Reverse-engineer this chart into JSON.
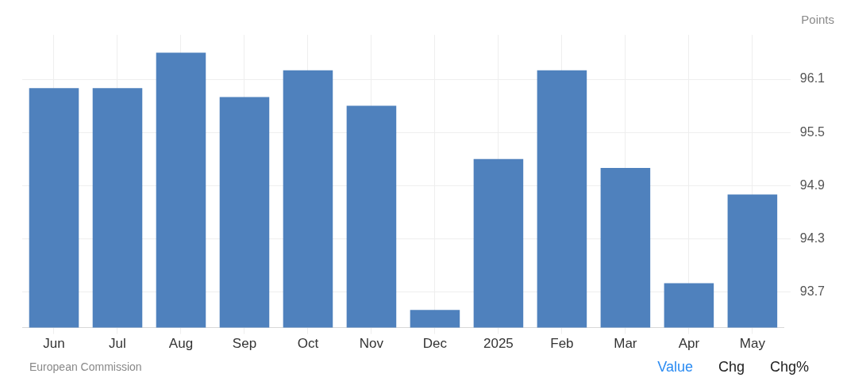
{
  "chart_data": {
    "type": "bar",
    "ylabel": "Points",
    "categories": [
      "Jun",
      "Jul",
      "Aug",
      "Sep",
      "Oct",
      "Nov",
      "Dec",
      "2025",
      "Feb",
      "Mar",
      "Apr",
      "May"
    ],
    "values": [
      96.0,
      96.0,
      96.4,
      95.9,
      96.2,
      95.8,
      93.5,
      95.2,
      96.2,
      95.1,
      93.8,
      94.8
    ],
    "color": "#4f81bd",
    "ylim": [
      93.3,
      96.6
    ],
    "yticks": [
      93.7,
      94.3,
      94.9,
      95.5,
      96.1
    ],
    "grid": true,
    "legend": false,
    "annotations": [
      "European Commission",
      "Value",
      "Chg",
      "Chg%"
    ]
  }
}
